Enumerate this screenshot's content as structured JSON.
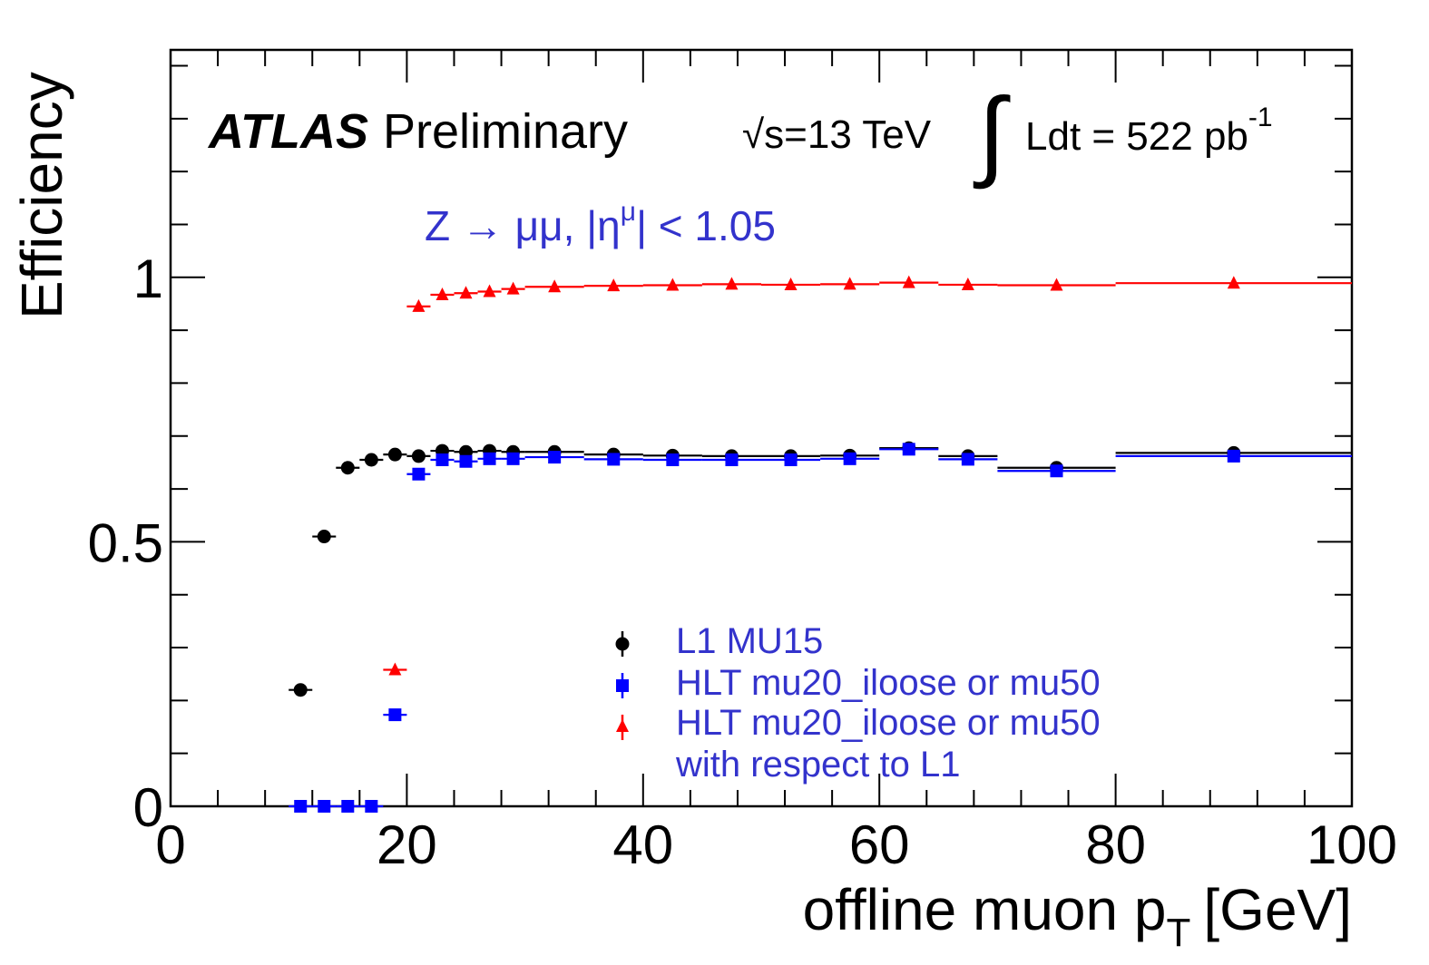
{
  "chart_data": {
    "type": "scatter",
    "xlabel": "offline muon p",
    "xlabel_sub": "T",
    "xlabel_unit": "[GeV]",
    "ylabel": "Efficiency",
    "xlim": [
      0,
      100
    ],
    "ylim": [
      0,
      1.43
    ],
    "x_ticks": [
      0,
      20,
      40,
      60,
      80,
      100
    ],
    "x_tick_labels": [
      "0",
      "20",
      "40",
      "60",
      "80",
      "100"
    ],
    "y_ticks": [
      0,
      0.5,
      1
    ],
    "y_tick_labels": [
      "0",
      "0.5",
      "1"
    ],
    "grid": false,
    "legend_position": "bottom-center",
    "annotations": {
      "experiment": "ATLAS",
      "status": "Preliminary",
      "energy_sqrt": "√s",
      "energy": "=13 TeV",
      "integral_sign": "∫",
      "lumi": "Ldt = 522 pb",
      "lumi_exp": "-1",
      "selection_pre": "Z → μμ, |η",
      "selection_sup": "μ",
      "selection_post": "| < 1.05"
    },
    "series": [
      {
        "name": "L1 MU15",
        "color": "#000000",
        "marker": "circle",
        "points": [
          {
            "x": 11,
            "xlo": 10,
            "xhi": 12,
            "y": 0.22
          },
          {
            "x": 13,
            "xlo": 12,
            "xhi": 14,
            "y": 0.51
          },
          {
            "x": 15,
            "xlo": 14,
            "xhi": 16,
            "y": 0.64
          },
          {
            "x": 17,
            "xlo": 16,
            "xhi": 18,
            "y": 0.655
          },
          {
            "x": 19,
            "xlo": 18,
            "xhi": 20,
            "y": 0.665
          },
          {
            "x": 21,
            "xlo": 20,
            "xhi": 22,
            "y": 0.662
          },
          {
            "x": 23,
            "xlo": 22,
            "xhi": 24,
            "y": 0.672
          },
          {
            "x": 25,
            "xlo": 24,
            "xhi": 26,
            "y": 0.67
          },
          {
            "x": 27,
            "xlo": 26,
            "xhi": 28,
            "y": 0.672
          },
          {
            "x": 29,
            "xlo": 28,
            "xhi": 30,
            "y": 0.67
          },
          {
            "x": 32.5,
            "xlo": 30,
            "xhi": 35,
            "y": 0.67
          },
          {
            "x": 37.5,
            "xlo": 35,
            "xhi": 40,
            "y": 0.665
          },
          {
            "x": 42.5,
            "xlo": 40,
            "xhi": 45,
            "y": 0.663
          },
          {
            "x": 47.5,
            "xlo": 45,
            "xhi": 50,
            "y": 0.662
          },
          {
            "x": 52.5,
            "xlo": 50,
            "xhi": 55,
            "y": 0.662
          },
          {
            "x": 57.5,
            "xlo": 55,
            "xhi": 60,
            "y": 0.663
          },
          {
            "x": 62.5,
            "xlo": 60,
            "xhi": 65,
            "y": 0.677
          },
          {
            "x": 67.5,
            "xlo": 65,
            "xhi": 70,
            "y": 0.662
          },
          {
            "x": 75,
            "xlo": 70,
            "xhi": 80,
            "y": 0.64
          },
          {
            "x": 90,
            "xlo": 80,
            "xhi": 100,
            "y": 0.668
          }
        ]
      },
      {
        "name": "HLT mu20_iloose or mu50",
        "color": "#0000ff",
        "marker": "square",
        "points": [
          {
            "x": 11,
            "xlo": 10,
            "xhi": 12,
            "y": 0.0
          },
          {
            "x": 13,
            "xlo": 12,
            "xhi": 14,
            "y": 0.0
          },
          {
            "x": 15,
            "xlo": 14,
            "xhi": 16,
            "y": 0.0
          },
          {
            "x": 17,
            "xlo": 16,
            "xhi": 18,
            "y": 0.0
          },
          {
            "x": 19,
            "xlo": 18,
            "xhi": 20,
            "y": 0.173
          },
          {
            "x": 21,
            "xlo": 20,
            "xhi": 22,
            "y": 0.628
          },
          {
            "x": 23,
            "xlo": 22,
            "xhi": 24,
            "y": 0.655
          },
          {
            "x": 25,
            "xlo": 24,
            "xhi": 26,
            "y": 0.652
          },
          {
            "x": 27,
            "xlo": 26,
            "xhi": 28,
            "y": 0.657
          },
          {
            "x": 29,
            "xlo": 28,
            "xhi": 30,
            "y": 0.657
          },
          {
            "x": 32.5,
            "xlo": 30,
            "xhi": 35,
            "y": 0.66
          },
          {
            "x": 37.5,
            "xlo": 35,
            "xhi": 40,
            "y": 0.656
          },
          {
            "x": 42.5,
            "xlo": 40,
            "xhi": 45,
            "y": 0.655
          },
          {
            "x": 47.5,
            "xlo": 45,
            "xhi": 50,
            "y": 0.655
          },
          {
            "x": 52.5,
            "xlo": 50,
            "xhi": 55,
            "y": 0.655
          },
          {
            "x": 57.5,
            "xlo": 55,
            "xhi": 60,
            "y": 0.657
          },
          {
            "x": 62.5,
            "xlo": 60,
            "xhi": 65,
            "y": 0.675
          },
          {
            "x": 67.5,
            "xlo": 65,
            "xhi": 70,
            "y": 0.656
          },
          {
            "x": 75,
            "xlo": 70,
            "xhi": 80,
            "y": 0.634
          },
          {
            "x": 90,
            "xlo": 80,
            "xhi": 100,
            "y": 0.662
          }
        ]
      },
      {
        "name": "HLT mu20_iloose or mu50",
        "name_line2": "with respect to L1",
        "color": "#ff0000",
        "marker": "triangle",
        "points": [
          {
            "x": 19,
            "xlo": 18,
            "xhi": 20,
            "y": 0.258
          },
          {
            "x": 21,
            "xlo": 20,
            "xhi": 22,
            "y": 0.945
          },
          {
            "x": 23,
            "xlo": 22,
            "xhi": 24,
            "y": 0.967
          },
          {
            "x": 25,
            "xlo": 24,
            "xhi": 26,
            "y": 0.97
          },
          {
            "x": 27,
            "xlo": 26,
            "xhi": 28,
            "y": 0.973
          },
          {
            "x": 29,
            "xlo": 28,
            "xhi": 30,
            "y": 0.978
          },
          {
            "x": 32.5,
            "xlo": 30,
            "xhi": 35,
            "y": 0.982
          },
          {
            "x": 37.5,
            "xlo": 35,
            "xhi": 40,
            "y": 0.984
          },
          {
            "x": 42.5,
            "xlo": 40,
            "xhi": 45,
            "y": 0.985
          },
          {
            "x": 47.5,
            "xlo": 45,
            "xhi": 50,
            "y": 0.987
          },
          {
            "x": 52.5,
            "xlo": 50,
            "xhi": 55,
            "y": 0.986
          },
          {
            "x": 57.5,
            "xlo": 55,
            "xhi": 60,
            "y": 0.987
          },
          {
            "x": 62.5,
            "xlo": 60,
            "xhi": 65,
            "y": 0.99
          },
          {
            "x": 67.5,
            "xlo": 65,
            "xhi": 70,
            "y": 0.986
          },
          {
            "x": 75,
            "xlo": 70,
            "xhi": 80,
            "y": 0.985
          },
          {
            "x": 90,
            "xlo": 80,
            "xhi": 100,
            "y": 0.989
          }
        ]
      }
    ],
    "colors": {
      "annotation_text": "#3333cc",
      "frame": "#000000"
    }
  }
}
